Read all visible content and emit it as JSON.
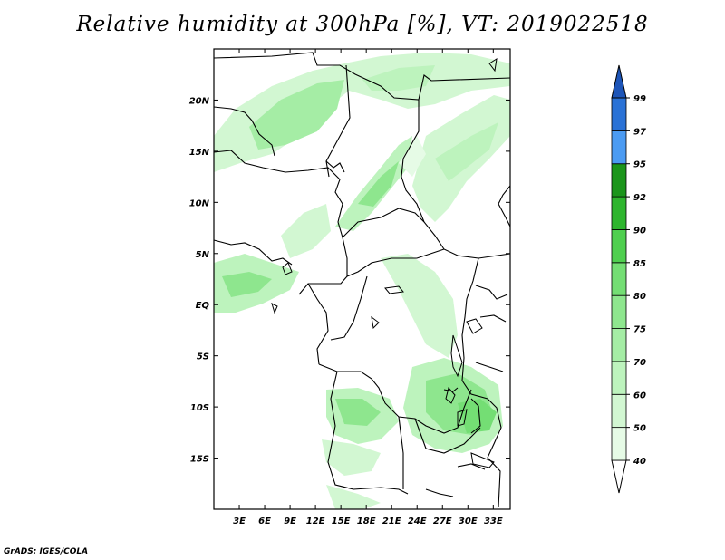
{
  "title": "Relative humidity at 300hPa [%], VT: 2019022518",
  "credit": "GrADS: IGES/COLA",
  "map": {
    "lon_range": [
      0,
      35
    ],
    "lat_range": [
      -20,
      25
    ],
    "lon_ticks": [
      "3E",
      "6E",
      "9E",
      "12E",
      "15E",
      "18E",
      "21E",
      "24E",
      "27E",
      "30E",
      "33E"
    ],
    "lat_ticks": [
      "20N",
      "15N",
      "10N",
      "5N",
      "EQ",
      "5S",
      "10S",
      "15S"
    ]
  },
  "colorbar": {
    "levels": [
      "40",
      "50",
      "60",
      "70",
      "75",
      "80",
      "85",
      "90",
      "92",
      "95",
      "97",
      "99"
    ],
    "colors": [
      "#ffffff",
      "#e6fbe6",
      "#d2f7d2",
      "#bdf3bd",
      "#a5eda5",
      "#8ee68e",
      "#74de74",
      "#4fcf4f",
      "#2eb52e",
      "#1b951b",
      "#4b9bf2",
      "#2a72d6",
      "#1d55b8"
    ]
  }
}
